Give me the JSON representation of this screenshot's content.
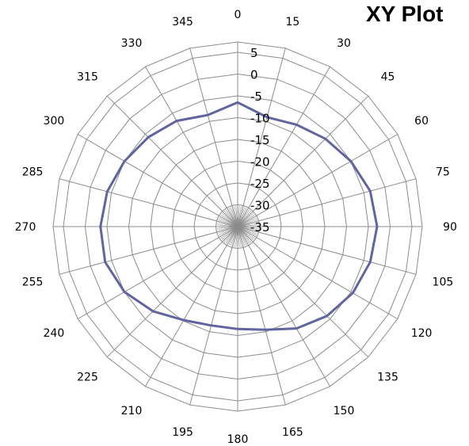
{
  "chart_data": {
    "type": "line",
    "subtype": "radar-polar",
    "title": "XY Plot",
    "angles": [
      0,
      15,
      30,
      45,
      60,
      75,
      90,
      105,
      120,
      135,
      150,
      165,
      180,
      195,
      210,
      225,
      240,
      255,
      270,
      285,
      300,
      315,
      330,
      345
    ],
    "angle_labels": [
      "0",
      "15",
      "30",
      "45",
      "60",
      "75",
      "90",
      "105",
      "120",
      "135",
      "150",
      "165",
      "180",
      "195",
      "210",
      "225",
      "240",
      "255",
      "270",
      "285",
      "300",
      "315",
      "330",
      "345"
    ],
    "radial_ticks": [
      5,
      0,
      -5,
      -10,
      -15,
      -20,
      -25,
      -30,
      -35
    ],
    "radial_tick_labels": [
      "5",
      "0",
      "-5",
      "-10",
      "-15",
      "-20",
      "-25",
      "-30",
      "-35"
    ],
    "rlim": [
      -35,
      5
    ],
    "grid": true,
    "series": [
      {
        "values": [
          -6.5,
          -9,
          -8,
          -6.5,
          -5,
          -3.5,
          -3,
          -3.5,
          -4.5,
          -6,
          -8,
          -10.5,
          -11.5,
          -11.5,
          -10.2,
          -7.5,
          -5,
          -3.5,
          -3.5,
          -4,
          -5,
          -6,
          -7,
          -8.5
        ],
        "color": "#6264a0"
      }
    ]
  }
}
